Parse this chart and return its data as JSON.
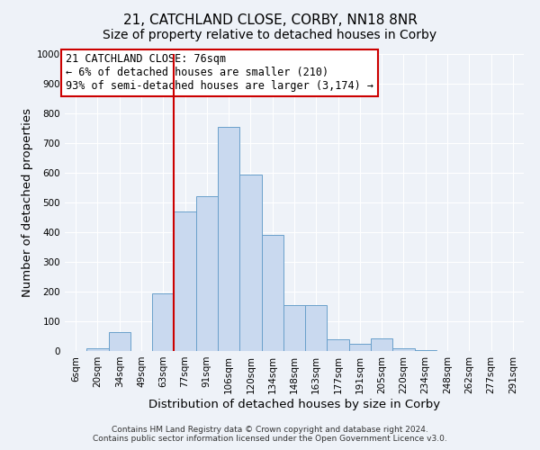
{
  "title": "21, CATCHLAND CLOSE, CORBY, NN18 8NR",
  "subtitle": "Size of property relative to detached houses in Corby",
  "xlabel": "Distribution of detached houses by size in Corby",
  "ylabel": "Number of detached properties",
  "bar_labels": [
    "6sqm",
    "20sqm",
    "34sqm",
    "49sqm",
    "63sqm",
    "77sqm",
    "91sqm",
    "106sqm",
    "120sqm",
    "134sqm",
    "148sqm",
    "163sqm",
    "177sqm",
    "191sqm",
    "205sqm",
    "220sqm",
    "234sqm",
    "248sqm",
    "262sqm",
    "277sqm",
    "291sqm"
  ],
  "bar_values": [
    0,
    10,
    65,
    0,
    195,
    470,
    520,
    755,
    595,
    390,
    155,
    155,
    40,
    25,
    42,
    8,
    2,
    0,
    0,
    0,
    0
  ],
  "bar_color": "#c9d9ef",
  "bar_edge_color": "#6aa0cb",
  "vline_color": "#cc0000",
  "annotation_text": "21 CATCHLAND CLOSE: 76sqm\n← 6% of detached houses are smaller (210)\n93% of semi-detached houses are larger (3,174) →",
  "annotation_box_color": "#ffffff",
  "annotation_box_edge": "#cc0000",
  "ylim": [
    0,
    1000
  ],
  "yticks": [
    0,
    100,
    200,
    300,
    400,
    500,
    600,
    700,
    800,
    900,
    1000
  ],
  "footer1": "Contains HM Land Registry data © Crown copyright and database right 2024.",
  "footer2": "Contains public sector information licensed under the Open Government Licence v3.0.",
  "bg_color": "#eef2f8",
  "plot_bg_color": "#eef2f8",
  "grid_color": "#ffffff",
  "title_fontsize": 11,
  "axis_label_fontsize": 9.5,
  "tick_fontsize": 7.5,
  "annotation_fontsize": 8.5,
  "footer_fontsize": 6.5
}
